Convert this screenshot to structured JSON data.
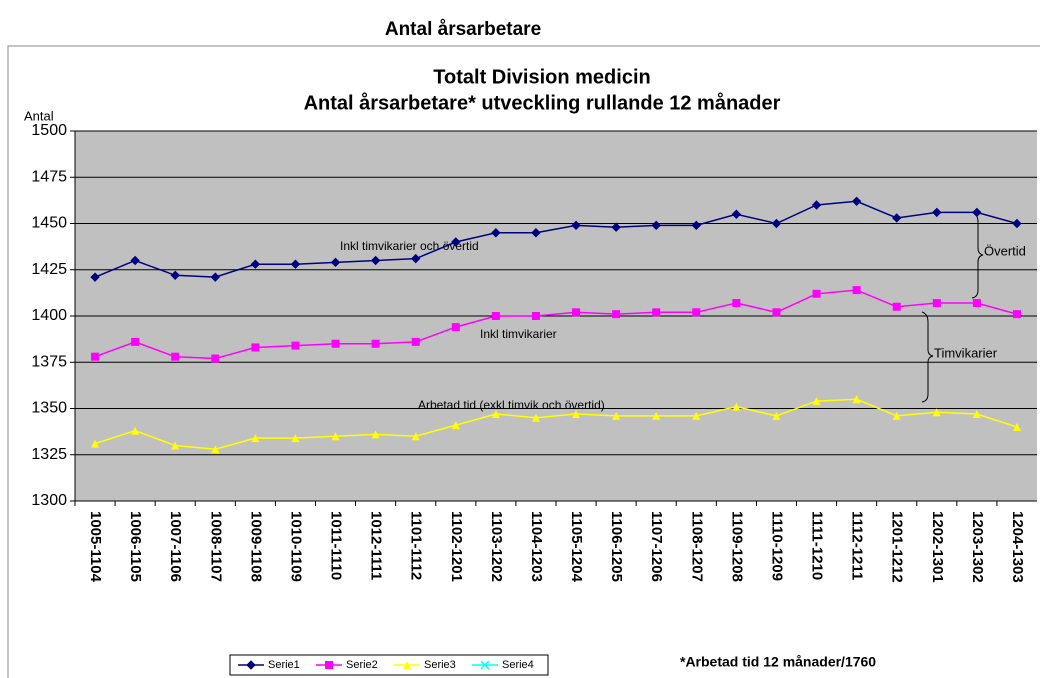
{
  "page_heading": "Antal årsarbetare",
  "chart_data": {
    "type": "line",
    "title": [
      "Totalt Division medicin",
      "Antal årsarbetare* utveckling rullande 12 månader"
    ],
    "y_label": "Antal",
    "categories": [
      "1005-1104",
      "1006-1105",
      "1007-1106",
      "1008-1107",
      "1009-1108",
      "1010-1109",
      "1011-1110",
      "1012-1111",
      "1101-1112",
      "1102-1201",
      "1103-1202",
      "1104-1203",
      "1105-1204",
      "1106-1205",
      "1107-1206",
      "1108-1207",
      "1109-1208",
      "1110-1209",
      "1111-1210",
      "1112-1211",
      "1201-1212",
      "1202-1301",
      "1203-1302",
      "1204-1303"
    ],
    "series": [
      {
        "name": "Serie1",
        "color": "#000080",
        "marker": "diamond",
        "values": [
          1421,
          1430,
          1422,
          1421,
          1428,
          1428,
          1429,
          1430,
          1431,
          1440,
          1445,
          1445,
          1449,
          1448,
          1449,
          1449,
          1455,
          1450,
          1460,
          1462,
          1453,
          1456,
          1456,
          1450
        ]
      },
      {
        "name": "Serie2",
        "color": "#ff00ff",
        "marker": "square",
        "values": [
          1378,
          1386,
          1378,
          1377,
          1383,
          1384,
          1385,
          1385,
          1386,
          1394,
          1400,
          1400,
          1402,
          1401,
          1402,
          1402,
          1407,
          1402,
          1412,
          1414,
          1405,
          1407,
          1407,
          1401
        ]
      },
      {
        "name": "Serie3",
        "color": "#ffff00",
        "marker": "triangle",
        "values": [
          1331,
          1338,
          1330,
          1328,
          1334,
          1334,
          1335,
          1336,
          1335,
          1341,
          1347,
          1345,
          1347,
          1346,
          1346,
          1346,
          1351,
          1346,
          1354,
          1355,
          1346,
          1348,
          1347,
          1340
        ]
      },
      {
        "name": "Serie4",
        "color": "#00ffff",
        "marker": "x",
        "values": [
          null,
          null,
          null,
          null,
          null,
          null,
          null,
          null,
          null,
          null,
          null,
          null,
          null,
          null,
          null,
          null,
          null,
          null,
          null,
          null,
          null,
          null,
          null,
          null
        ]
      }
    ],
    "ylim": [
      1300,
      1500
    ],
    "yticks": [
      1300,
      1325,
      1350,
      1375,
      1400,
      1425,
      1450,
      1475,
      1500
    ],
    "grid": true,
    "legend": "bottom",
    "annotations": [
      "Inkl timvikarier och övertid",
      "Inkl timvikarier",
      "Arbetad tid (exkl timvik och övertid)",
      "Övertid",
      "Timvikarier"
    ],
    "footnote": "*Arbetad tid 12 månader/1760"
  }
}
